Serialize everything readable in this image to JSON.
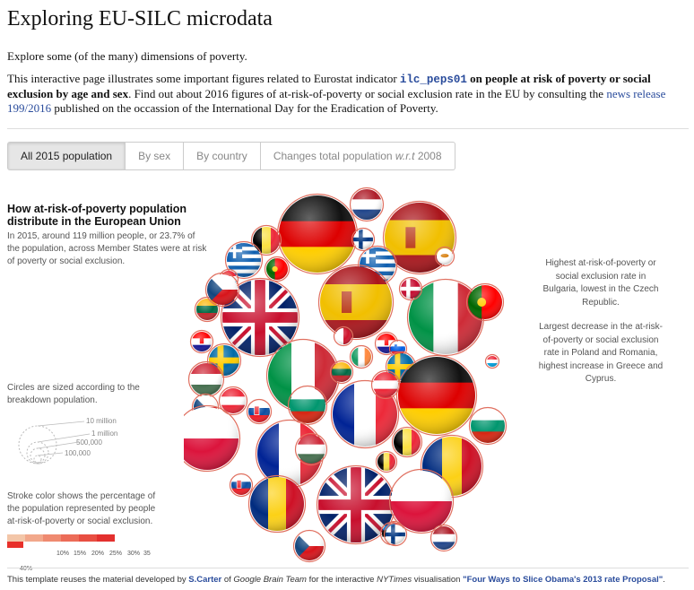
{
  "header": {
    "title": "Exploring EU-SILC microdata",
    "subtitle": "Explore some (of the many) dimensions of poverty."
  },
  "intro": {
    "t1": "This interactive page illustrates some important figures related to Eurostat indicator ",
    "indicator": "ilc_peps01",
    "t2": " on people at risk of poverty or social exclusion by age and sex",
    "t3": ". Find out about 2016 figures of at-risk-of-poverty or social exclusion rate in the EU by consulting the ",
    "link": "news release 199/2016",
    "t4": " published on the occassion of the International Day for the Eradication of Poverty."
  },
  "tabs": [
    {
      "label": "All 2015 population",
      "active": true
    },
    {
      "label": "By sex",
      "active": false
    },
    {
      "label": "By country",
      "active": false
    },
    {
      "label": "Changes total population ",
      "italic": "w.r.t",
      "suffix": " 2008",
      "active": false
    }
  ],
  "panel": {
    "heading": "How at-risk-of-poverty population distribute in the European Union",
    "lead": "In 2015, around 119 million people, or 23.7% of the population, across Member States were at risk of poverty or social exclusion.",
    "size_note": "Circles are sized according to the breakdown population.",
    "size_legend": [
      "10 million",
      "1 million",
      "500,000",
      "100,000"
    ],
    "stroke_note": "Stroke color shows the percentage of the population represented by people at-risk-of-poverty or social exclusion.",
    "scale_ticks": [
      "10%",
      "15%",
      "20%",
      "25%",
      "30%",
      "35"
    ],
    "scale_below": "40%",
    "scale_colors": [
      "#f3c6a8",
      "#f2a88b",
      "#ef8a70",
      "#ec6c58",
      "#e84e42",
      "#e3302e"
    ]
  },
  "notes": {
    "n1": "Highest at-risk-of-poverty or social exclusion rate in Bulgaria, lowest in the Czech Republic.",
    "n2": "Largest decrease in the at-risk-of-poverty or social exclusion rate in Poland and Romania, highest increase in Greece and Cyprus."
  },
  "footer": {
    "t1": "This template reuses the material developed by ",
    "author": "S.Carter",
    "t2": " of ",
    "team": "Google Brain Team",
    "t3": " for the interactive ",
    "pub": "NYTimes",
    "t4": " visualisation ",
    "link": "\"Four Ways to Slice Obama's 2013 rate Proposal\"",
    "t5": "."
  },
  "flags": [
    {
      "id": "de1",
      "flag": "de"
    },
    {
      "id": "es1",
      "flag": "es"
    },
    {
      "id": "nl1",
      "flag": "nl"
    },
    {
      "id": "fi1",
      "flag": "fi"
    },
    {
      "id": "be1",
      "flag": "be"
    },
    {
      "id": "gr1",
      "flag": "gr"
    },
    {
      "id": "pt1",
      "flag": "pt"
    },
    {
      "id": "gr2",
      "flag": "gr"
    },
    {
      "id": "cy1",
      "flag": "cy"
    },
    {
      "id": "lu1",
      "flag": "lu"
    },
    {
      "id": "uk1",
      "flag": "uk"
    },
    {
      "id": "es2",
      "flag": "es"
    },
    {
      "id": "it1",
      "flag": "it"
    },
    {
      "id": "pt2",
      "flag": "pt"
    },
    {
      "id": "dk1",
      "flag": "dk"
    },
    {
      "id": "lt1",
      "flag": "lt"
    },
    {
      "id": "cz1",
      "flag": "cz"
    },
    {
      "id": "hr1",
      "flag": "hr"
    },
    {
      "id": "mt1",
      "flag": "mt"
    },
    {
      "id": "se1",
      "flag": "se"
    },
    {
      "id": "it2",
      "flag": "it"
    },
    {
      "id": "ie1",
      "flag": "ie"
    },
    {
      "id": "hr2",
      "flag": "hr"
    },
    {
      "id": "si1",
      "flag": "si"
    },
    {
      "id": "se2",
      "flag": "se"
    },
    {
      "id": "de2",
      "flag": "de"
    },
    {
      "id": "lt2",
      "flag": "lt"
    },
    {
      "id": "at1",
      "flag": "at"
    },
    {
      "id": "fr1",
      "flag": "fr"
    },
    {
      "id": "hu1",
      "flag": "hu"
    },
    {
      "id": "cz2",
      "flag": "cz"
    },
    {
      "id": "bg1",
      "flag": "bg"
    },
    {
      "id": "at2",
      "flag": "at"
    },
    {
      "id": "sk1",
      "flag": "sk"
    },
    {
      "id": "lu2",
      "flag": "lu"
    },
    {
      "id": "bg2",
      "flag": "bg"
    },
    {
      "id": "pl1",
      "flag": "pl"
    },
    {
      "id": "fr2",
      "flag": "fr"
    },
    {
      "id": "be2",
      "flag": "be"
    },
    {
      "id": "hu2",
      "flag": "hu"
    },
    {
      "id": "ro1",
      "flag": "ro"
    },
    {
      "id": "be3",
      "flag": "be"
    },
    {
      "id": "ro2",
      "flag": "ro"
    },
    {
      "id": "uk2",
      "flag": "uk"
    },
    {
      "id": "sk2",
      "flag": "sk"
    },
    {
      "id": "pl2",
      "flag": "pl"
    },
    {
      "id": "lu3",
      "flag": "lu"
    },
    {
      "id": "cz3",
      "flag": "cz"
    },
    {
      "id": "ee1",
      "flag": "ee"
    },
    {
      "id": "fi2",
      "flag": "fi"
    },
    {
      "id": "nl2",
      "flag": "nl"
    }
  ]
}
